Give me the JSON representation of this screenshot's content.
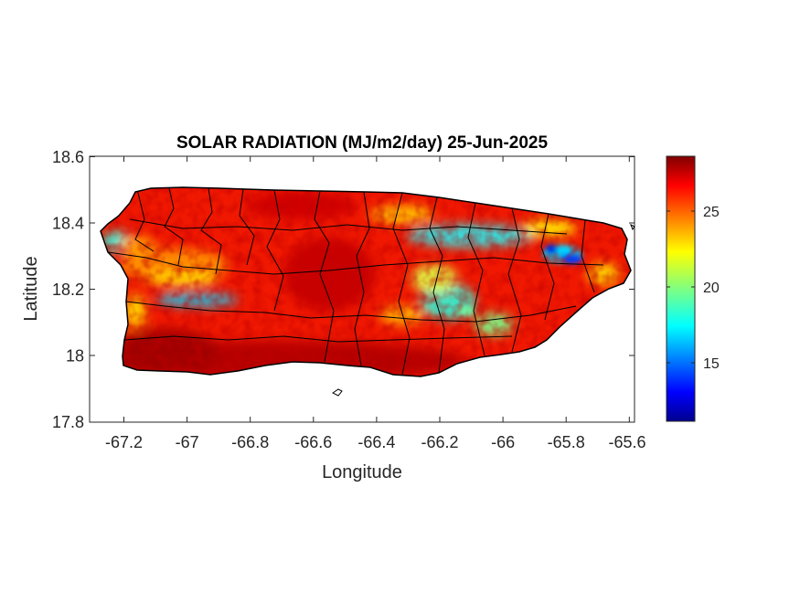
{
  "title": "SOLAR RADIATION (MJ/m2/day) 25-Jun-2025",
  "xlabel": "Longitude",
  "ylabel": "Latitude",
  "x_ticks": [
    "-67.2",
    "-67",
    "-66.8",
    "-66.6",
    "-66.4",
    "-66.2",
    "-66",
    "-65.8",
    "-65.6"
  ],
  "y_ticks": [
    "18.6",
    "18.4",
    "18.2",
    "18"
  ],
  "y_tick_bottom": "17.8",
  "colorbar_ticks": [
    "25",
    "20",
    "15"
  ],
  "chart_data": {
    "type": "heatmap",
    "colormap": "jet",
    "region": "Puerto Rico with municipality boundaries",
    "xlim": [
      -67.3,
      -65.58
    ],
    "ylim": [
      17.8,
      18.6
    ],
    "x_tick_values": [
      -67.2,
      -67.0,
      -66.8,
      -66.6,
      -66.4,
      -66.2,
      -66.0,
      -65.8,
      -65.6
    ],
    "y_tick_values": [
      17.8,
      18.0,
      18.2,
      18.4,
      18.6
    ],
    "colorbar": {
      "min": 11,
      "max": 28.5,
      "tick_values": [
        15,
        20,
        25
      ]
    },
    "low_radiation_zones": [
      {
        "lon": -65.82,
        "lat": 18.29,
        "value": 12
      },
      {
        "lon": -65.87,
        "lat": 18.31,
        "value": 14
      },
      {
        "lon": -67.0,
        "lat": 18.17,
        "value": 17
      },
      {
        "lon": -66.22,
        "lat": 18.34,
        "value": 19
      },
      {
        "lon": -66.15,
        "lat": 18.15,
        "value": 19
      },
      {
        "lon": -67.2,
        "lat": 18.34,
        "value": 20
      }
    ],
    "typical_value": 26,
    "southern_coast_value": 28
  }
}
